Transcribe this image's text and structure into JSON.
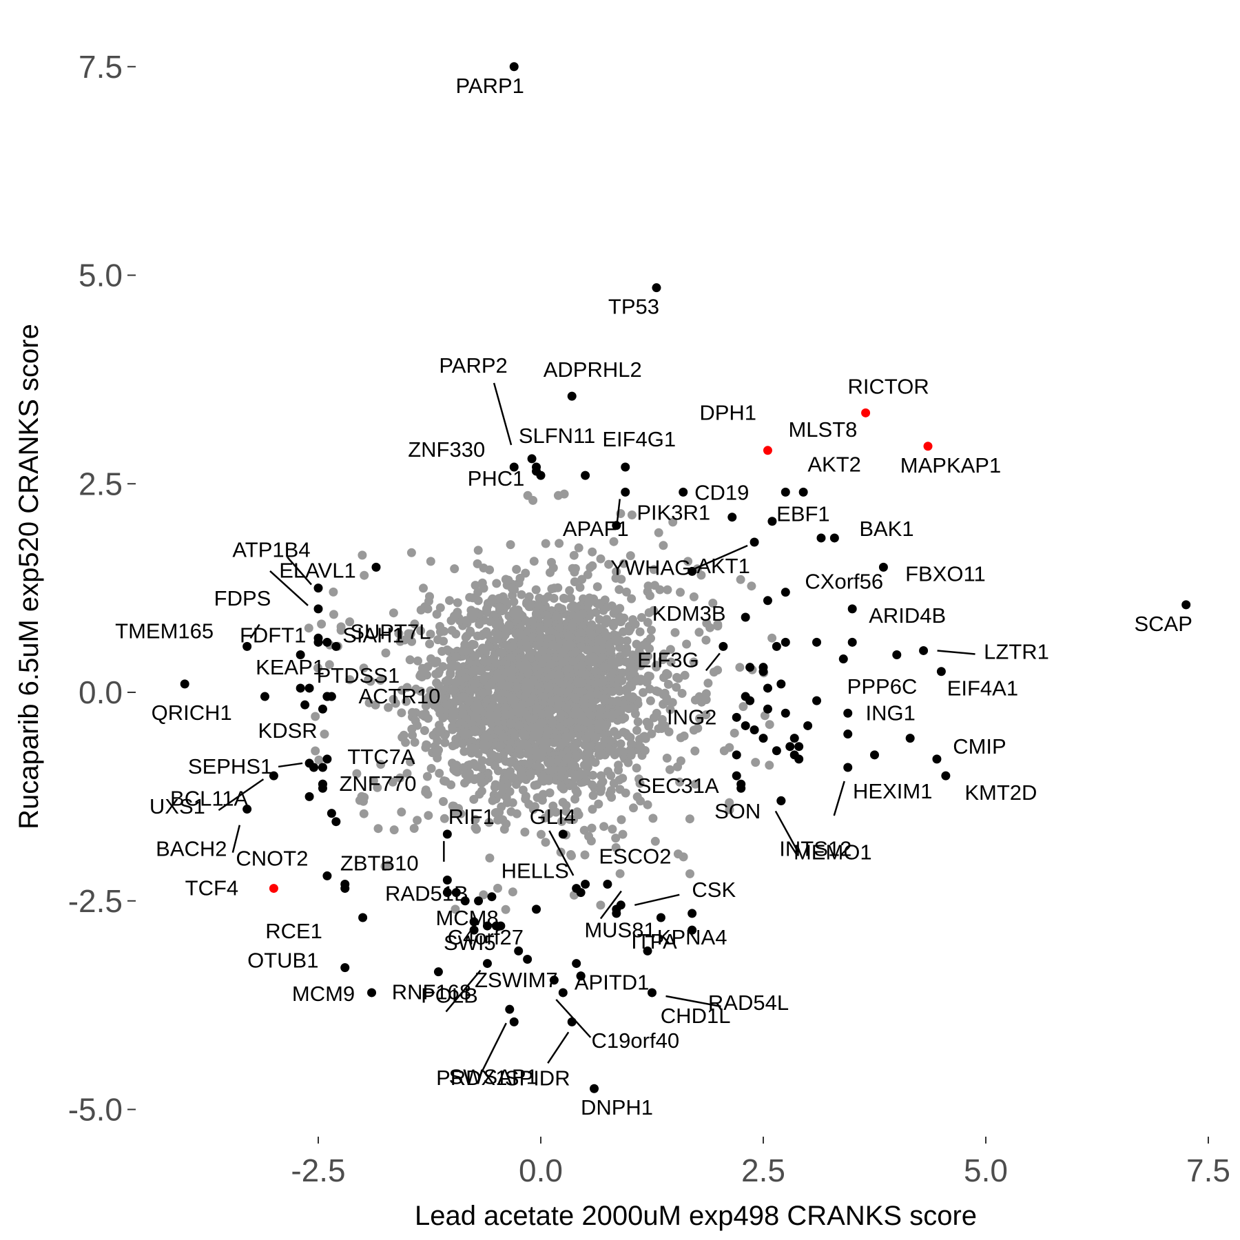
{
  "chart_data": {
    "type": "scatter",
    "xlabel": "Lead acetate 2000uM exp498 CRANKS score",
    "ylabel": "Rucaparib 6.5uM exp520 CRANKS score",
    "xlim": [
      -4.4,
      7.5
    ],
    "ylim": [
      -5.3,
      7.75
    ],
    "x_ticks": [
      "-2.5",
      "0.0",
      "2.5",
      "5.0",
      "7.5"
    ],
    "y_ticks": [
      "-5.0",
      "-2.5",
      "0.0",
      "2.5",
      "5.0",
      "7.5"
    ],
    "grid": false,
    "background_cloud": {
      "color": "#999999",
      "description_center": [
        0.0,
        0.0
      ]
    },
    "colors": {
      "background": "#999999",
      "highlight": "#000000",
      "special": "#ff0000"
    },
    "labeled_points": [
      {
        "label": "PARP1",
        "x": -0.3,
        "y": 7.5
      },
      {
        "label": "TP53",
        "x": 1.3,
        "y": 4.85
      },
      {
        "label": "ADPRHL2",
        "x": 0.35,
        "y": 3.55
      },
      {
        "label": "RICTOR",
        "x": 3.65,
        "y": 3.35,
        "color": "#ff0000"
      },
      {
        "label": "MAPKAP1",
        "x": 4.35,
        "y": 2.95,
        "color": "#ff0000"
      },
      {
        "label": "MLST8",
        "x": 2.55,
        "y": 2.9,
        "color": "#ff0000"
      },
      {
        "label": "DPH1",
        "x": 1.6,
        "y": 2.4
      },
      {
        "label": "PARP2",
        "x": -0.1,
        "y": 2.8
      },
      {
        "label": "SLFN11",
        "x": -0.05,
        "y": 2.7
      },
      {
        "label": "ZNF330",
        "x": -0.3,
        "y": 2.7
      },
      {
        "label": "EIF4G1",
        "x": 0.95,
        "y": 2.7
      },
      {
        "label": "CD19",
        "x": 2.15,
        "y": 2.1
      },
      {
        "label": "AKT2",
        "x": 2.95,
        "y": 2.4
      },
      {
        "label": "PHC1",
        "x": 0.0,
        "y": 2.6
      },
      {
        "label": "PIK3R1",
        "x": 0.95,
        "y": 2.4
      },
      {
        "label": "EBF1",
        "x": 2.6,
        "y": 2.05
      },
      {
        "label": "APAF1",
        "x": 0.85,
        "y": 2.0
      },
      {
        "label": "BAK1",
        "x": 3.15,
        "y": 1.85
      },
      {
        "label": "YWHAG",
        "x": 1.7,
        "y": 1.45
      },
      {
        "label": "AKT1",
        "x": 2.4,
        "y": 1.8
      },
      {
        "label": "CXorf56",
        "x": 2.75,
        "y": 1.2
      },
      {
        "label": "FBXO11",
        "x": 3.85,
        "y": 1.5
      },
      {
        "label": "SCAP",
        "x": 7.25,
        "y": 1.05
      },
      {
        "label": "ATP1B4",
        "x": -2.5,
        "y": 1.25
      },
      {
        "label": "ELAVL1",
        "x": -1.85,
        "y": 1.5
      },
      {
        "label": "FDPS",
        "x": -2.5,
        "y": 1.0
      },
      {
        "label": "SUPT7L",
        "x": -2.4,
        "y": 0.6
      },
      {
        "label": "KDM3B",
        "x": 2.3,
        "y": 0.9
      },
      {
        "label": "ARID4B",
        "x": 3.5,
        "y": 1.0
      },
      {
        "label": "FDFT1",
        "x": -2.7,
        "y": 0.45
      },
      {
        "label": "SIAH1",
        "x": -2.5,
        "y": 0.6
      },
      {
        "label": "TMEM165",
        "x": -3.3,
        "y": 0.55
      },
      {
        "label": "EIF3G",
        "x": 2.05,
        "y": 0.55
      },
      {
        "label": "LZTR1",
        "x": 4.3,
        "y": 0.5
      },
      {
        "label": "KEAP1",
        "x": -2.7,
        "y": 0.05
      },
      {
        "label": "PTDSS1",
        "x": -2.4,
        "y": -0.05
      },
      {
        "label": "PPP6C",
        "x": 3.1,
        "y": -0.1
      },
      {
        "label": "EIF4A1",
        "x": 4.5,
        "y": 0.25
      },
      {
        "label": "QRICH1",
        "x": -4.0,
        "y": 0.1
      },
      {
        "label": "KDSR",
        "x": -2.65,
        "y": -0.15
      },
      {
        "label": "ACTR10",
        "x": -2.4,
        "y": -0.05
      },
      {
        "label": "ING1",
        "x": 3.45,
        "y": -0.25
      },
      {
        "label": "ING2",
        "x": 2.2,
        "y": -0.3
      },
      {
        "label": "CMIP",
        "x": 4.45,
        "y": -0.8
      },
      {
        "label": "SEPHS1",
        "x": -2.6,
        "y": -0.85
      },
      {
        "label": "TTC7A",
        "x": -2.45,
        "y": -0.9
      },
      {
        "label": "SEC31A",
        "x": 2.2,
        "y": -1.0
      },
      {
        "label": "HEXIM1",
        "x": 3.45,
        "y": -0.9
      },
      {
        "label": "KMT2D",
        "x": 4.55,
        "y": -1.0
      },
      {
        "label": "UXS1",
        "x": -3.0,
        "y": -1.0
      },
      {
        "label": "ZNF770",
        "x": -2.45,
        "y": -1.1
      },
      {
        "label": "SON",
        "x": 2.25,
        "y": -1.1
      },
      {
        "label": "BCL11A",
        "x": -3.3,
        "y": -1.4
      },
      {
        "label": "MEMO1",
        "x": 2.7,
        "y": -1.3
      },
      {
        "label": "GLI4",
        "x": 0.25,
        "y": -1.7
      },
      {
        "label": "RIF1",
        "x": -1.05,
        "y": -1.7
      },
      {
        "label": "BACH2",
        "x": -2.3,
        "y": -1.55
      },
      {
        "label": "CNOT2",
        "x": -2.4,
        "y": -2.2
      },
      {
        "label": "ZBTB10",
        "x": -2.2,
        "y": -2.3
      },
      {
        "label": "INTS12",
        "x": 2.7,
        "y": -1.3
      },
      {
        "label": "ESCO2",
        "x": 0.75,
        "y": -2.3
      },
      {
        "label": "HELLS",
        "x": 0.4,
        "y": -2.35
      },
      {
        "label": "TCF4",
        "x": -3.0,
        "y": -2.35,
        "color": "#ff0000"
      },
      {
        "label": "CSK",
        "x": 0.9,
        "y": -2.55
      },
      {
        "label": "RAD51B",
        "x": -1.05,
        "y": -2.25
      },
      {
        "label": "RCE1",
        "x": -2.0,
        "y": -2.7
      },
      {
        "label": "ITPA",
        "x": 1.35,
        "y": -2.7
      },
      {
        "label": "KPNA4",
        "x": 1.7,
        "y": -2.65
      },
      {
        "label": "C4orf27",
        "x": 0.85,
        "y": -2.65
      },
      {
        "label": "OTUB1",
        "x": -2.2,
        "y": -3.3
      },
      {
        "label": "MCM8",
        "x": -0.75,
        "y": -2.75
      },
      {
        "label": "SWI5",
        "x": -0.45,
        "y": -2.8
      },
      {
        "label": "MUS81",
        "x": 1.2,
        "y": -3.1
      },
      {
        "label": "CHD1L",
        "x": 1.7,
        "y": -2.85
      },
      {
        "label": "ZSWIM7",
        "x": 0.15,
        "y": -3.45
      },
      {
        "label": "MCM9",
        "x": -1.9,
        "y": -3.6
      },
      {
        "label": "RNF168",
        "x": -1.15,
        "y": -3.35
      },
      {
        "label": "APITD1",
        "x": 0.45,
        "y": -3.4
      },
      {
        "label": "RAD54L",
        "x": 1.25,
        "y": -3.6
      },
      {
        "label": "POLB",
        "x": -0.6,
        "y": -3.25
      },
      {
        "label": "SWSAP1",
        "x": -0.3,
        "y": -3.95
      },
      {
        "label": "C19orf40",
        "x": 0.25,
        "y": -3.6
      },
      {
        "label": "PRDX1",
        "x": -0.35,
        "y": -3.8
      },
      {
        "label": "SPIDR",
        "x": 0.35,
        "y": -3.95
      },
      {
        "label": "DNPH1",
        "x": 0.6,
        "y": -4.75
      }
    ],
    "unlabeled_highlight_points": [
      [
        -0.05,
        2.65
      ],
      [
        0.5,
        2.6
      ],
      [
        2.75,
        2.4
      ],
      [
        3.3,
        1.85
      ],
      [
        2.55,
        1.1
      ],
      [
        3.1,
        0.6
      ],
      [
        3.5,
        0.6
      ],
      [
        4.0,
        0.45
      ],
      [
        2.75,
        0.6
      ],
      [
        2.65,
        0.55
      ],
      [
        3.4,
        0.4
      ],
      [
        2.5,
        0.3
      ],
      [
        2.35,
        0.3
      ],
      [
        2.5,
        0.25
      ],
      [
        2.7,
        0.1
      ],
      [
        2.55,
        0.05
      ],
      [
        2.3,
        -0.05
      ],
      [
        2.35,
        -0.1
      ],
      [
        2.55,
        -0.2
      ],
      [
        2.75,
        -0.25
      ],
      [
        2.85,
        -0.55
      ],
      [
        3.0,
        -0.4
      ],
      [
        2.3,
        -0.4
      ],
      [
        2.5,
        -0.55
      ],
      [
        2.8,
        -0.65
      ],
      [
        2.9,
        -0.65
      ],
      [
        2.2,
        -0.75
      ],
      [
        2.85,
        -0.75
      ],
      [
        3.75,
        -0.75
      ],
      [
        4.15,
        -0.55
      ],
      [
        2.25,
        -1.15
      ],
      [
        3.45,
        -0.5
      ],
      [
        2.4,
        -0.45
      ],
      [
        2.65,
        -0.7
      ],
      [
        2.9,
        -0.8
      ],
      [
        -2.5,
        0.65
      ],
      [
        -2.3,
        0.55
      ],
      [
        -2.6,
        0.05
      ],
      [
        -2.45,
        -0.2
      ],
      [
        -2.35,
        -0.05
      ],
      [
        -2.45,
        -1.1
      ],
      [
        -2.45,
        -1.15
      ],
      [
        -2.55,
        -0.9
      ],
      [
        -3.1,
        -0.05
      ],
      [
        -2.6,
        -1.25
      ],
      [
        -2.4,
        -0.8
      ],
      [
        -2.35,
        -1.45
      ],
      [
        -2.2,
        -2.35
      ],
      [
        -1.05,
        -2.4
      ],
      [
        -0.95,
        -2.4
      ],
      [
        -0.85,
        -2.5
      ],
      [
        -0.7,
        -2.5
      ],
      [
        -0.55,
        -2.45
      ],
      [
        -0.75,
        -2.85
      ],
      [
        -0.6,
        -2.8
      ],
      [
        -0.5,
        -2.8
      ],
      [
        -0.25,
        -3.1
      ],
      [
        -0.15,
        -3.2
      ],
      [
        -0.05,
        -2.6
      ],
      [
        0.4,
        -3.25
      ],
      [
        0.45,
        -3.4
      ],
      [
        0.5,
        -2.3
      ],
      [
        0.45,
        -2.4
      ],
      [
        0.85,
        -2.6
      ]
    ]
  }
}
